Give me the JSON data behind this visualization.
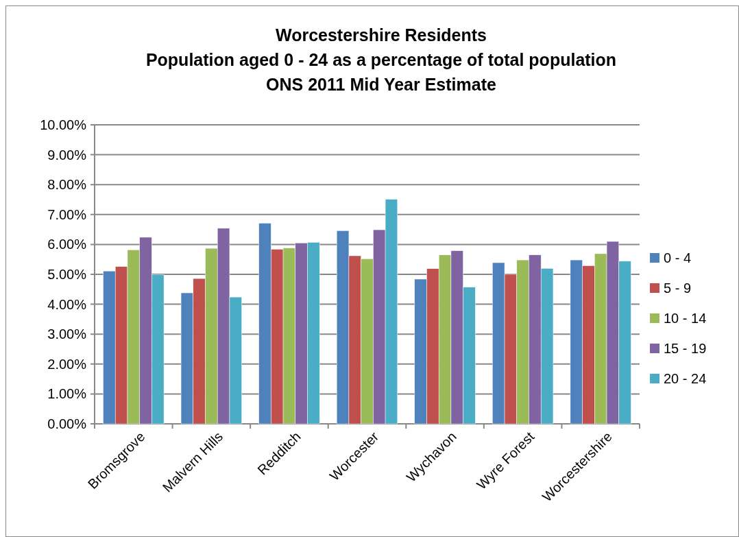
{
  "chart_data": {
    "type": "bar",
    "title": "Worcestershire Residents\nPopulation aged 0 - 24 as a percentage of total population\nONS 2011 Mid Year Estimate",
    "categories": [
      "Bromsgrove",
      "Malvern Hills",
      "Redditch",
      "Worcester",
      "Wychavon",
      "Wyre Forest",
      "Worcestershire"
    ],
    "series": [
      {
        "name": "0 - 4",
        "color": "#4f81bd",
        "values": [
          5.11,
          4.38,
          6.71,
          6.46,
          4.84,
          5.39,
          5.48
        ]
      },
      {
        "name": "5 - 9",
        "color": "#c0504d",
        "values": [
          5.26,
          4.86,
          5.84,
          5.62,
          5.19,
          5.0,
          5.29
        ]
      },
      {
        "name": "10 - 14",
        "color": "#9bbb59",
        "values": [
          5.82,
          5.87,
          5.88,
          5.52,
          5.65,
          5.48,
          5.69
        ]
      },
      {
        "name": "15 - 19",
        "color": "#8064a2",
        "values": [
          6.24,
          6.54,
          6.05,
          6.49,
          5.79,
          5.65,
          6.1
        ]
      },
      {
        "name": "20 - 24",
        "color": "#4bacc6",
        "values": [
          4.99,
          4.24,
          6.07,
          7.51,
          4.57,
          5.2,
          5.44
        ]
      }
    ],
    "ylim": [
      0,
      10
    ],
    "yticks": [
      {
        "value": 0,
        "label": "0.00%"
      },
      {
        "value": 1,
        "label": "1.00%"
      },
      {
        "value": 2,
        "label": "2.00%"
      },
      {
        "value": 3,
        "label": "3.00%"
      },
      {
        "value": 4,
        "label": "4.00%"
      },
      {
        "value": 5,
        "label": "5.00%"
      },
      {
        "value": 6,
        "label": "6.00%"
      },
      {
        "value": 7,
        "label": "7.00%"
      },
      {
        "value": 8,
        "label": "8.00%"
      },
      {
        "value": 9,
        "label": "9.00%"
      },
      {
        "value": 10,
        "label": "10.00%"
      }
    ],
    "grid": "y",
    "legend": "right"
  }
}
